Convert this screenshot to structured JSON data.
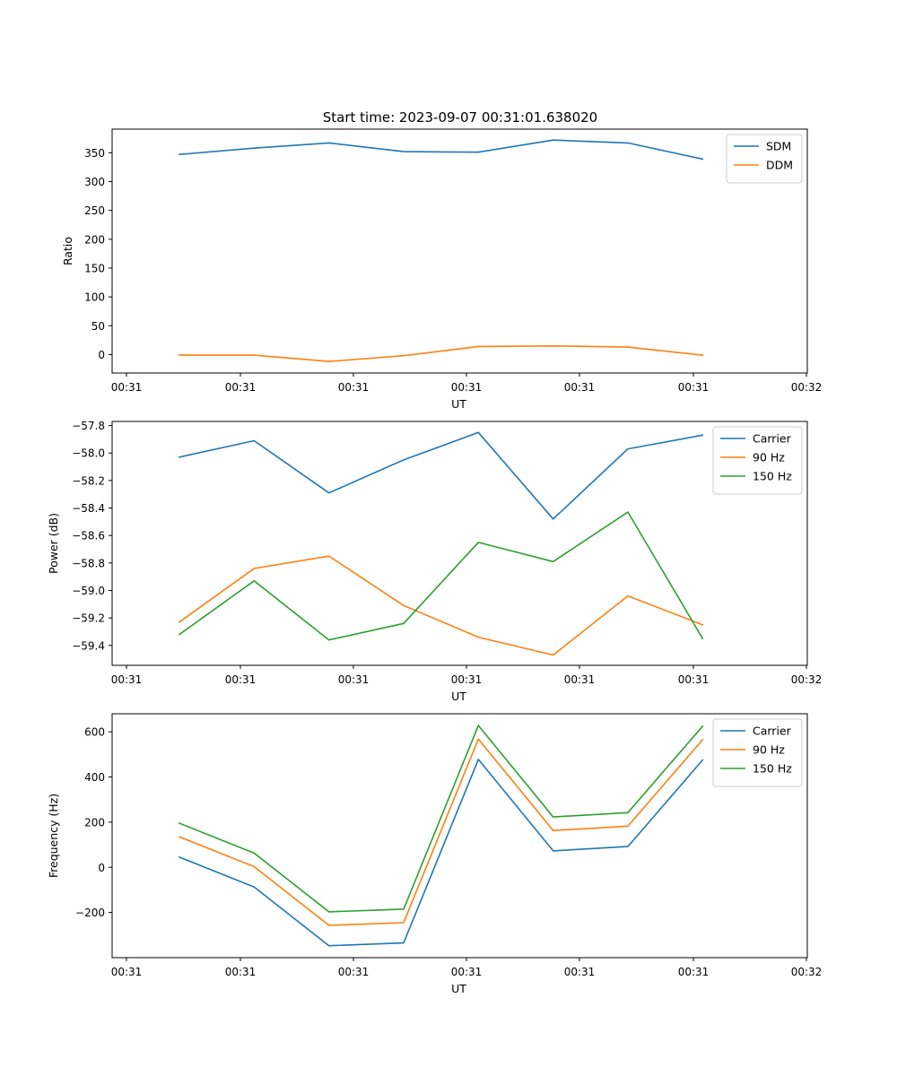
{
  "figure": {
    "title": "Start time: 2023-09-07 00:31:01.638020"
  },
  "chart_data": [
    {
      "type": "line",
      "xlabel": "UT",
      "ylabel": "Ratio",
      "xticklabels": [
        "00:31",
        "00:31",
        "00:31",
        "00:31",
        "00:31",
        "00:31",
        "00:31"
      ],
      "x_end_ticklabel": "00:32",
      "yticks": [
        0,
        50,
        100,
        150,
        200,
        250,
        300,
        350
      ],
      "ylim": [
        -32,
        391
      ],
      "xlim": [
        -0.9,
        8.4
      ],
      "x": [
        0,
        1,
        2,
        3,
        4,
        5,
        6,
        7
      ],
      "series": [
        {
          "name": "SDM",
          "color": "#1f77b4",
          "values": [
            347,
            358,
            367,
            352,
            351,
            372,
            367,
            339
          ]
        },
        {
          "name": "DDM",
          "color": "#ff7f0e",
          "values": [
            -1,
            -1,
            -12,
            -2,
            14,
            15,
            13,
            -1
          ]
        }
      ]
    },
    {
      "type": "line",
      "xlabel": "UT",
      "ylabel": "Power (dB)",
      "xticklabels": [
        "00:31",
        "00:31",
        "00:31",
        "00:31",
        "00:31",
        "00:31",
        "00:31"
      ],
      "x_end_ticklabel": "00:32",
      "yticks": [
        -59.4,
        -59.2,
        -59.0,
        -58.8,
        -58.6,
        -58.4,
        -58.2,
        -58.0,
        -57.8
      ],
      "ytick_labels": [
        "−59.4",
        "−59.2",
        "−59.0",
        "−58.8",
        "−58.6",
        "−58.4",
        "−58.2",
        "−58.0",
        "−57.8"
      ],
      "ylim": [
        -59.545,
        -57.77
      ],
      "xlim": [
        -0.9,
        8.4
      ],
      "x": [
        0,
        1,
        2,
        3,
        4,
        5,
        6,
        7
      ],
      "series": [
        {
          "name": "Carrier",
          "color": "#1f77b4",
          "values": [
            -58.03,
            -57.91,
            -58.29,
            -58.05,
            -57.85,
            -58.48,
            -57.97,
            -57.87
          ]
        },
        {
          "name": "90 Hz",
          "color": "#ff7f0e",
          "values": [
            -59.23,
            -58.84,
            -58.75,
            -59.11,
            -59.34,
            -59.47,
            -59.04,
            -59.25
          ]
        },
        {
          "name": "150 Hz",
          "color": "#2ca02c",
          "values": [
            -59.32,
            -58.93,
            -59.36,
            -59.24,
            -58.65,
            -58.79,
            -58.43,
            -59.35
          ]
        }
      ]
    },
    {
      "type": "line",
      "xlabel": "UT",
      "ylabel": "Frequency (Hz)",
      "xticklabels": [
        "00:31",
        "00:31",
        "00:31",
        "00:31",
        "00:31",
        "00:31",
        "00:31"
      ],
      "x_end_ticklabel": "00:32",
      "yticks": [
        -200,
        0,
        200,
        400,
        600
      ],
      "ytick_labels": [
        "−200",
        "0",
        "200",
        "400",
        "600"
      ],
      "ylim": [
        -400,
        680
      ],
      "xlim": [
        -0.9,
        8.4
      ],
      "x": [
        0,
        1,
        2,
        3,
        4,
        5,
        6,
        7
      ],
      "series": [
        {
          "name": "Carrier",
          "color": "#1f77b4",
          "values": [
            45,
            -87,
            -347,
            -335,
            478,
            73,
            92,
            475
          ]
        },
        {
          "name": "90 Hz",
          "color": "#ff7f0e",
          "values": [
            135,
            3,
            -257,
            -245,
            568,
            163,
            182,
            565
          ]
        },
        {
          "name": "150 Hz",
          "color": "#2ca02c",
          "values": [
            195,
            63,
            -197,
            -185,
            628,
            223,
            242,
            625
          ]
        }
      ]
    }
  ]
}
